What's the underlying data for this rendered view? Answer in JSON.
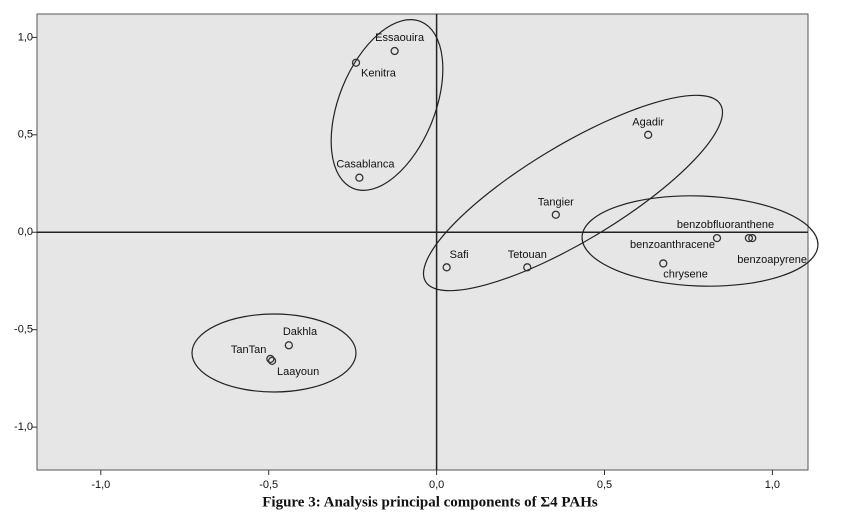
{
  "chart_data": {
    "type": "scatter",
    "title": "Figure 3: Analysis principal components of Σ4 PAHs",
    "labels": [
      "Essaouira",
      "Kenitra",
      "Casablanca",
      "Agadir",
      "Tangier",
      "Safi",
      "Tetouan",
      "benzobfluoranthene",
      "benzoanthracene",
      "benzoapyrene",
      "chrysene",
      "Dakhla",
      "TanTan",
      "Laayoun"
    ],
    "x": [
      -0.125,
      -0.24,
      -0.23,
      0.63,
      0.355,
      0.03,
      0.27,
      0.93,
      0.835,
      0.94,
      0.675,
      -0.44,
      -0.495,
      -0.49
    ],
    "values": [
      0.93,
      0.87,
      0.28,
      0.5,
      0.09,
      -0.18,
      -0.18,
      -0.03,
      -0.03,
      -0.03,
      -0.16,
      -0.58,
      -0.65,
      -0.66
    ],
    "color": "#333333",
    "xlim": [
      -1.19,
      1.106
    ],
    "ylim": [
      -1.22,
      1.12
    ],
    "xticks": [
      {
        "value": -1,
        "label": "-1,0"
      },
      {
        "value": -0.5,
        "label": "-0,5"
      },
      {
        "value": 0,
        "label": "0,0"
      },
      {
        "value": 0.5,
        "label": "0,5"
      },
      {
        "value": 1,
        "label": "1,0"
      }
    ],
    "yticks": [
      {
        "value": -1,
        "label": "-1,0"
      },
      {
        "value": -0.5,
        "label": "-0,5"
      },
      {
        "value": 0,
        "label": "0,0"
      },
      {
        "value": 0.5,
        "label": "0,5"
      },
      {
        "value": 1,
        "label": "1,0"
      }
    ]
  }
}
